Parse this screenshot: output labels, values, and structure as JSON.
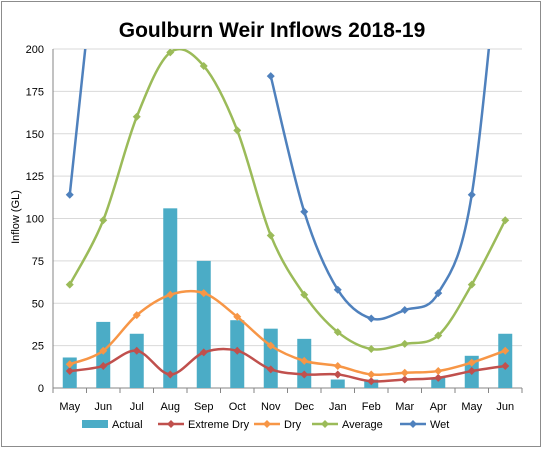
{
  "chart_data": {
    "type": "bar",
    "title": "Goulburn Weir Inflows 2018-19",
    "xlabel": "",
    "ylabel": "Inflow (GL)",
    "categories": [
      "May",
      "Jun",
      "Jul",
      "Aug",
      "Sep",
      "Oct",
      "Nov",
      "Dec",
      "Jan",
      "Feb",
      "Mar",
      "Apr",
      "May",
      "Jun"
    ],
    "ylim": [
      0,
      200
    ],
    "yticks": [
      "0",
      "25",
      "50",
      "75",
      "100",
      "125",
      "150",
      "175",
      "200"
    ],
    "grid": true,
    "legend_position": "bottom",
    "series": [
      {
        "name": "Actual",
        "kind": "bar",
        "color": "#4bacc6",
        "values": [
          18,
          39,
          32,
          106,
          75,
          40,
          35,
          29,
          5,
          5,
          null,
          6,
          19,
          32
        ]
      },
      {
        "name": "Extreme Dry",
        "kind": "line",
        "color": "#c0504d",
        "values": [
          10,
          13,
          22,
          8,
          21,
          22,
          11,
          8,
          8,
          4,
          5,
          6,
          10,
          13
        ]
      },
      {
        "name": "Dry",
        "kind": "line",
        "color": "#f79646",
        "values": [
          14,
          22,
          43,
          55,
          56,
          42,
          25,
          16,
          13,
          8,
          9,
          10,
          15,
          22
        ]
      },
      {
        "name": "Average",
        "kind": "line",
        "color": "#9bbb59",
        "values": [
          61,
          99,
          160,
          198,
          190,
          152,
          90,
          55,
          33,
          23,
          26,
          31,
          61,
          99
        ]
      },
      {
        "name": "Wet",
        "kind": "line",
        "color": "#4f81bd",
        "values": [
          114,
          300,
          null,
          null,
          null,
          null,
          184,
          104,
          58,
          41,
          46,
          56,
          114,
          300
        ]
      }
    ]
  }
}
